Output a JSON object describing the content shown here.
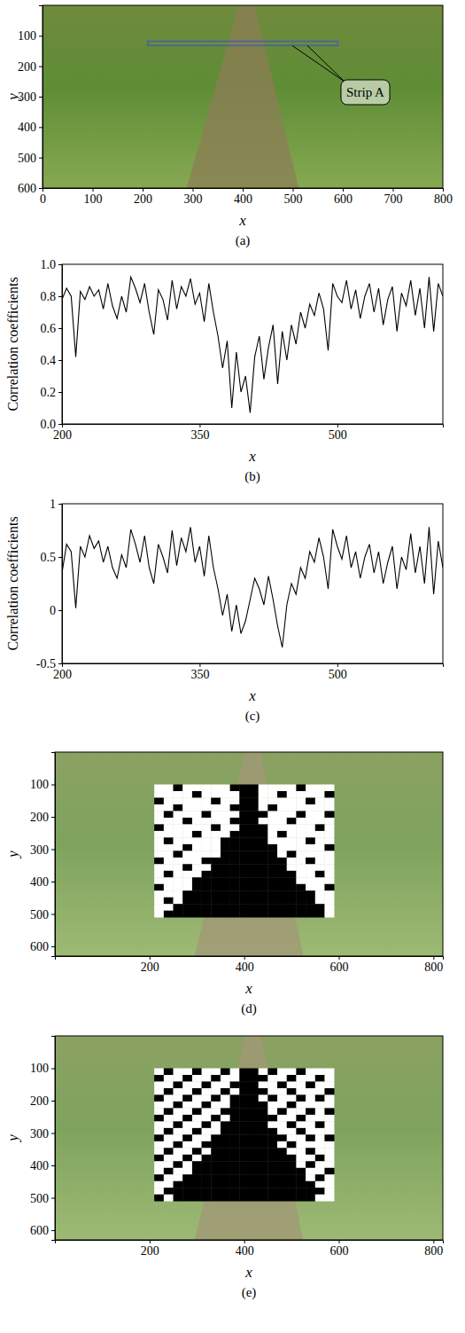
{
  "chart_data": [
    {
      "type": "image",
      "caption": "(a)",
      "x_label": "x",
      "y_label": "y",
      "xlim": [
        0,
        800
      ],
      "ylim": [
        0,
        600
      ],
      "xticks": [
        0,
        100,
        200,
        300,
        400,
        500,
        600,
        700,
        800
      ],
      "yticks": [
        100,
        200,
        300,
        400,
        500,
        600
      ],
      "strip": {
        "x": [
          210,
          590
        ],
        "y": [
          118,
          132
        ]
      },
      "annotation": {
        "text": "Strip A",
        "x": 645,
        "y": 290
      }
    },
    {
      "type": "line",
      "caption": "(b)",
      "x_label": "x",
      "y_label": "Correlation coefficients",
      "xlim": [
        200,
        615
      ],
      "ylim": [
        0,
        1
      ],
      "xticks": [
        200,
        350,
        500
      ],
      "yticks": [
        {
          "value": 0,
          "label": "0.0"
        },
        0.2,
        0.4,
        0.6,
        0.8,
        {
          "value": 1,
          "label": "1.0"
        }
      ],
      "color": "#000000",
      "x": [
        200,
        205,
        210,
        215,
        220,
        225,
        230,
        235,
        240,
        245,
        250,
        255,
        260,
        265,
        270,
        275,
        280,
        285,
        290,
        295,
        300,
        305,
        310,
        315,
        320,
        325,
        330,
        335,
        340,
        345,
        350,
        355,
        360,
        365,
        370,
        375,
        380,
        385,
        390,
        395,
        400,
        405,
        410,
        415,
        420,
        425,
        430,
        435,
        440,
        445,
        450,
        455,
        460,
        465,
        470,
        475,
        480,
        485,
        490,
        495,
        500,
        505,
        510,
        515,
        520,
        525,
        530,
        535,
        540,
        545,
        550,
        555,
        560,
        565,
        570,
        575,
        580,
        585,
        590,
        595,
        600,
        605,
        610,
        615
      ],
      "values": [
        0.78,
        0.85,
        0.8,
        0.42,
        0.83,
        0.78,
        0.86,
        0.8,
        0.84,
        0.72,
        0.88,
        0.74,
        0.66,
        0.8,
        0.7,
        0.92,
        0.85,
        0.76,
        0.88,
        0.7,
        0.56,
        0.84,
        0.78,
        0.65,
        0.9,
        0.72,
        0.86,
        0.8,
        0.91,
        0.75,
        0.82,
        0.64,
        0.88,
        0.7,
        0.55,
        0.35,
        0.52,
        0.1,
        0.45,
        0.2,
        0.3,
        0.07,
        0.42,
        0.55,
        0.28,
        0.48,
        0.62,
        0.25,
        0.58,
        0.4,
        0.62,
        0.5,
        0.7,
        0.6,
        0.75,
        0.68,
        0.82,
        0.72,
        0.46,
        0.88,
        0.8,
        0.76,
        0.9,
        0.72,
        0.84,
        0.66,
        0.8,
        0.88,
        0.7,
        0.85,
        0.62,
        0.78,
        0.86,
        0.58,
        0.82,
        0.74,
        0.9,
        0.68,
        0.85,
        0.6,
        0.92,
        0.58,
        0.88,
        0.8
      ]
    },
    {
      "type": "line",
      "caption": "(c)",
      "x_label": "x",
      "y_label": "Correlation coefficients",
      "xlim": [
        200,
        615
      ],
      "ylim": [
        -0.5,
        1
      ],
      "xticks": [
        200,
        350,
        500
      ],
      "yticks": [
        -0.5,
        0,
        0.5,
        1
      ],
      "color": "#000000",
      "x": [
        200,
        205,
        210,
        215,
        220,
        225,
        230,
        235,
        240,
        245,
        250,
        255,
        260,
        265,
        270,
        275,
        280,
        285,
        290,
        295,
        300,
        305,
        310,
        315,
        320,
        325,
        330,
        335,
        340,
        345,
        350,
        355,
        360,
        365,
        370,
        375,
        380,
        385,
        390,
        395,
        400,
        405,
        410,
        415,
        420,
        425,
        430,
        435,
        440,
        445,
        450,
        455,
        460,
        465,
        470,
        475,
        480,
        485,
        490,
        495,
        500,
        505,
        510,
        515,
        520,
        525,
        530,
        535,
        540,
        545,
        550,
        555,
        560,
        565,
        570,
        575,
        580,
        585,
        590,
        595,
        600,
        605,
        610,
        615
      ],
      "values": [
        0.35,
        0.62,
        0.55,
        0.02,
        0.6,
        0.5,
        0.7,
        0.58,
        0.65,
        0.45,
        0.6,
        0.4,
        0.3,
        0.52,
        0.4,
        0.76,
        0.62,
        0.45,
        0.7,
        0.4,
        0.25,
        0.62,
        0.5,
        0.35,
        0.75,
        0.42,
        0.68,
        0.55,
        0.78,
        0.45,
        0.6,
        0.32,
        0.7,
        0.4,
        0.2,
        -0.05,
        0.15,
        -0.2,
        0.05,
        -0.22,
        -0.1,
        0.1,
        0.3,
        0.2,
        0.05,
        0.32,
        0.1,
        -0.15,
        -0.35,
        0.05,
        0.25,
        0.15,
        0.4,
        0.3,
        0.55,
        0.45,
        0.68,
        0.5,
        0.2,
        0.76,
        0.6,
        0.48,
        0.7,
        0.4,
        0.55,
        0.3,
        0.5,
        0.62,
        0.35,
        0.55,
        0.25,
        0.45,
        0.6,
        0.2,
        0.5,
        0.38,
        0.72,
        0.35,
        0.6,
        0.25,
        0.78,
        0.15,
        0.65,
        0.4
      ]
    },
    {
      "type": "heatmap",
      "caption": "(d)",
      "x_label": "x",
      "y_label": "y",
      "xlim": [
        0,
        820
      ],
      "ylim": [
        0,
        630
      ],
      "xticks": [
        200,
        400,
        600,
        800
      ],
      "yticks": [
        100,
        200,
        300,
        400,
        500,
        600
      ],
      "cells_xlim": [
        210,
        590
      ],
      "cells_ylim": [
        100,
        510
      ],
      "cells": [
        [
          1,
          1,
          0,
          1,
          1,
          1,
          1,
          1,
          0,
          0,
          0,
          1,
          1,
          1,
          1,
          0,
          1,
          1,
          1
        ],
        [
          1,
          1,
          1,
          1,
          0,
          1,
          1,
          1,
          1,
          0,
          0,
          1,
          1,
          0,
          1,
          1,
          1,
          1,
          0
        ],
        [
          0,
          1,
          1,
          1,
          1,
          1,
          0,
          1,
          1,
          0,
          0,
          1,
          1,
          1,
          1,
          1,
          0,
          1,
          1
        ],
        [
          1,
          1,
          0,
          1,
          1,
          1,
          1,
          1,
          0,
          0,
          0,
          1,
          0,
          1,
          1,
          1,
          1,
          1,
          1
        ],
        [
          1,
          0,
          1,
          1,
          1,
          0,
          1,
          1,
          1,
          0,
          0,
          0,
          1,
          1,
          1,
          0,
          1,
          1,
          0
        ],
        [
          1,
          1,
          1,
          0,
          1,
          1,
          1,
          1,
          0,
          0,
          0,
          1,
          1,
          1,
          0,
          1,
          1,
          1,
          1
        ],
        [
          0,
          1,
          1,
          1,
          1,
          1,
          0,
          1,
          1,
          0,
          0,
          0,
          1,
          1,
          1,
          1,
          1,
          0,
          1
        ],
        [
          1,
          1,
          1,
          1,
          0,
          1,
          1,
          1,
          0,
          0,
          0,
          0,
          1,
          0,
          1,
          1,
          1,
          1,
          1
        ],
        [
          1,
          0,
          1,
          1,
          1,
          1,
          1,
          0,
          0,
          0,
          0,
          0,
          1,
          1,
          1,
          1,
          0,
          1,
          1
        ],
        [
          1,
          1,
          1,
          0,
          1,
          1,
          1,
          0,
          0,
          0,
          0,
          0,
          0,
          1,
          1,
          1,
          1,
          1,
          0
        ],
        [
          1,
          1,
          0,
          1,
          1,
          1,
          1,
          0,
          0,
          0,
          0,
          0,
          0,
          1,
          0,
          1,
          1,
          1,
          1
        ],
        [
          0,
          1,
          1,
          1,
          1,
          0,
          0,
          0,
          0,
          0,
          0,
          0,
          0,
          0,
          1,
          1,
          0,
          1,
          1
        ],
        [
          1,
          1,
          1,
          0,
          1,
          1,
          0,
          0,
          0,
          0,
          0,
          0,
          0,
          0,
          1,
          1,
          1,
          1,
          1
        ],
        [
          1,
          0,
          1,
          1,
          1,
          0,
          0,
          0,
          0,
          0,
          0,
          0,
          0,
          0,
          0,
          1,
          1,
          0,
          1
        ],
        [
          1,
          1,
          1,
          1,
          0,
          0,
          0,
          0,
          0,
          0,
          0,
          0,
          0,
          0,
          0,
          1,
          1,
          1,
          1
        ],
        [
          0,
          1,
          1,
          1,
          0,
          0,
          0,
          0,
          0,
          0,
          0,
          0,
          0,
          0,
          0,
          0,
          1,
          1,
          0
        ],
        [
          1,
          1,
          1,
          0,
          0,
          0,
          0,
          0,
          0,
          0,
          0,
          0,
          0,
          0,
          0,
          0,
          0,
          1,
          1
        ],
        [
          1,
          0,
          1,
          0,
          0,
          0,
          0,
          0,
          0,
          0,
          0,
          0,
          0,
          0,
          0,
          0,
          0,
          1,
          1
        ],
        [
          1,
          1,
          0,
          0,
          0,
          0,
          0,
          0,
          0,
          0,
          0,
          0,
          0,
          0,
          0,
          0,
          0,
          0,
          1
        ],
        [
          1,
          0,
          0,
          0,
          0,
          0,
          0,
          0,
          0,
          0,
          0,
          0,
          0,
          0,
          0,
          0,
          0,
          0,
          1
        ]
      ]
    },
    {
      "type": "heatmap",
      "caption": "(e)",
      "x_label": "x",
      "y_label": "y",
      "xlim": [
        0,
        820
      ],
      "ylim": [
        0,
        630
      ],
      "xticks": [
        200,
        400,
        600,
        800
      ],
      "yticks": [
        100,
        200,
        300,
        400,
        500,
        600
      ],
      "cells_xlim": [
        210,
        590
      ],
      "cells_ylim": [
        100,
        510
      ],
      "cells": [
        [
          1,
          0,
          1,
          1,
          0,
          1,
          1,
          0,
          1,
          0,
          0,
          1,
          0,
          1,
          1,
          0,
          1,
          1,
          1
        ],
        [
          0,
          1,
          1,
          0,
          1,
          1,
          0,
          1,
          1,
          0,
          0,
          0,
          1,
          1,
          0,
          1,
          1,
          0,
          1
        ],
        [
          1,
          1,
          0,
          1,
          1,
          0,
          1,
          1,
          0,
          0,
          0,
          1,
          1,
          0,
          1,
          1,
          0,
          1,
          1
        ],
        [
          1,
          0,
          1,
          1,
          0,
          1,
          1,
          0,
          1,
          0,
          0,
          0,
          1,
          1,
          0,
          1,
          1,
          1,
          0
        ],
        [
          0,
          1,
          1,
          0,
          1,
          1,
          0,
          1,
          0,
          0,
          0,
          1,
          0,
          1,
          1,
          0,
          1,
          0,
          1
        ],
        [
          1,
          1,
          0,
          1,
          1,
          0,
          1,
          1,
          0,
          0,
          0,
          0,
          1,
          1,
          0,
          1,
          1,
          1,
          1
        ],
        [
          1,
          0,
          1,
          1,
          0,
          1,
          1,
          0,
          0,
          0,
          0,
          0,
          1,
          0,
          1,
          1,
          0,
          1,
          0
        ],
        [
          0,
          1,
          1,
          0,
          1,
          1,
          0,
          1,
          0,
          0,
          0,
          0,
          0,
          1,
          1,
          0,
          1,
          1,
          1
        ],
        [
          1,
          1,
          0,
          1,
          1,
          0,
          1,
          0,
          0,
          0,
          0,
          0,
          1,
          1,
          0,
          1,
          1,
          0,
          1
        ],
        [
          1,
          0,
          1,
          1,
          0,
          1,
          1,
          0,
          0,
          0,
          0,
          0,
          0,
          1,
          1,
          0,
          1,
          1,
          1
        ],
        [
          0,
          1,
          1,
          0,
          1,
          1,
          0,
          0,
          0,
          0,
          0,
          0,
          0,
          0,
          1,
          1,
          0,
          1,
          0
        ],
        [
          1,
          1,
          0,
          1,
          1,
          0,
          0,
          0,
          0,
          0,
          0,
          0,
          0,
          1,
          0,
          1,
          1,
          1,
          1
        ],
        [
          1,
          0,
          1,
          1,
          0,
          1,
          0,
          0,
          0,
          0,
          0,
          0,
          0,
          0,
          1,
          1,
          0,
          1,
          1
        ],
        [
          0,
          1,
          1,
          0,
          1,
          0,
          0,
          0,
          0,
          0,
          0,
          0,
          0,
          0,
          0,
          1,
          1,
          0,
          1
        ],
        [
          1,
          1,
          0,
          1,
          0,
          0,
          0,
          0,
          0,
          0,
          0,
          0,
          0,
          0,
          0,
          1,
          0,
          1,
          1
        ],
        [
          1,
          0,
          1,
          1,
          0,
          0,
          0,
          0,
          0,
          0,
          0,
          0,
          0,
          0,
          0,
          0,
          1,
          1,
          0
        ],
        [
          0,
          1,
          1,
          0,
          0,
          0,
          0,
          0,
          0,
          0,
          0,
          0,
          0,
          0,
          0,
          0,
          1,
          0,
          1
        ],
        [
          1,
          1,
          0,
          0,
          0,
          0,
          0,
          0,
          0,
          0,
          0,
          0,
          0,
          0,
          0,
          0,
          0,
          1,
          1
        ],
        [
          1,
          0,
          0,
          0,
          0,
          0,
          0,
          0,
          0,
          0,
          0,
          0,
          0,
          0,
          0,
          0,
          0,
          0,
          1
        ],
        [
          0,
          1,
          0,
          0,
          0,
          0,
          0,
          0,
          0,
          0,
          0,
          0,
          0,
          0,
          0,
          0,
          0,
          1,
          1
        ]
      ]
    }
  ]
}
